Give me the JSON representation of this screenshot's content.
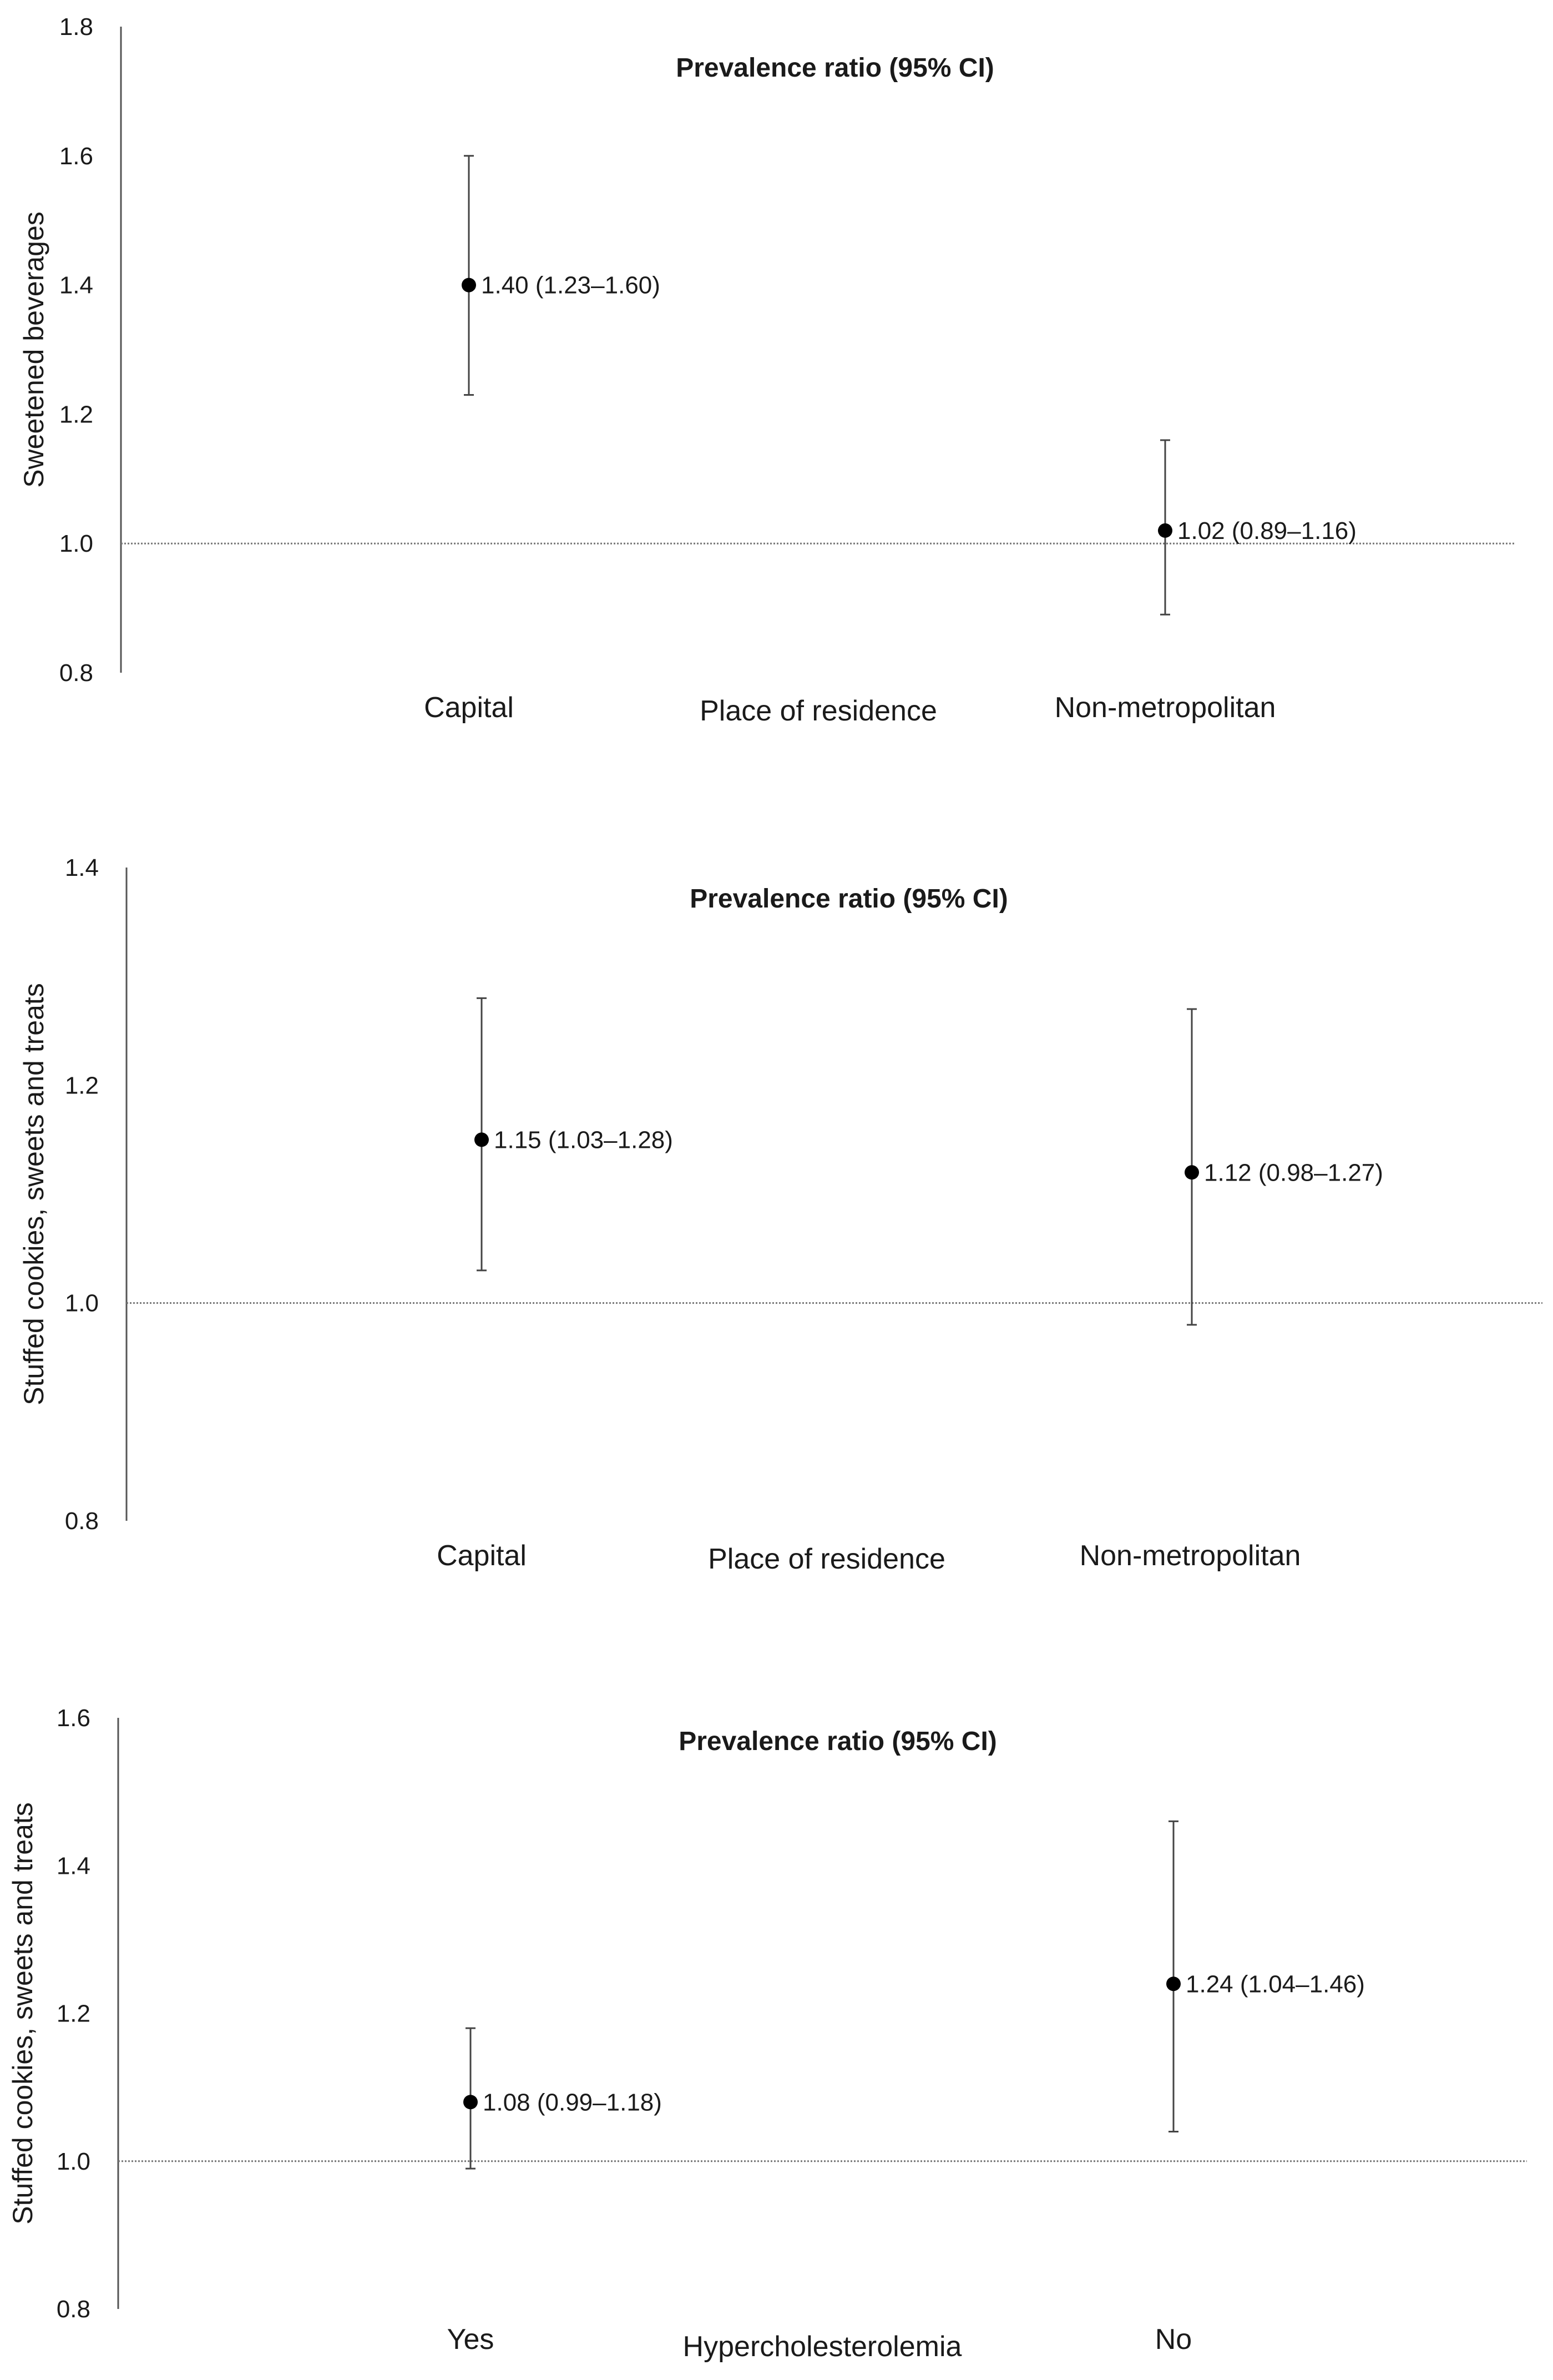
{
  "chart_data": [
    {
      "type": "scatter",
      "subtype": "point-estimate-with-95%-CI",
      "title": "Prevalence ratio (95% CI)",
      "ylabel": "Sweetened beverages",
      "xlabel": "Place of residence",
      "ylim": [
        0.8,
        1.8
      ],
      "yticks": [
        "0.8",
        "1.0",
        "1.2",
        "1.4",
        "1.6",
        "1.8"
      ],
      "reference_line": 1.0,
      "grid": false,
      "categories": [
        "Capital",
        "Non-metropolitan"
      ],
      "points": [
        {
          "category": "Capital",
          "value": 1.4,
          "lower": 1.23,
          "upper": 1.6,
          "label": "1.40 (1.23–1.60)"
        },
        {
          "category": "Non-metropolitan",
          "value": 1.02,
          "lower": 0.89,
          "upper": 1.16,
          "label": "1.02 (0.89–1.16)"
        }
      ]
    },
    {
      "type": "scatter",
      "subtype": "point-estimate-with-95%-CI",
      "title": "Prevalence ratio (95% CI)",
      "ylabel": "Stuffed cookies, sweets and treats",
      "xlabel": "Place of residence",
      "ylim": [
        0.8,
        1.4
      ],
      "yticks": [
        "0.8",
        "1.0",
        "1.2",
        "1.4"
      ],
      "reference_line": 1.0,
      "grid": false,
      "categories": [
        "Capital",
        "Non-metropolitan"
      ],
      "points": [
        {
          "category": "Capital",
          "value": 1.15,
          "lower": 1.03,
          "upper": 1.28,
          "label": "1.15 (1.03–1.28)"
        },
        {
          "category": "Non-metropolitan",
          "value": 1.12,
          "lower": 0.98,
          "upper": 1.27,
          "label": "1.12 (0.98–1.27)"
        }
      ]
    },
    {
      "type": "scatter",
      "subtype": "point-estimate-with-95%-CI",
      "title": "Prevalence ratio (95% CI)",
      "ylabel": "Stuffed cookies, sweets and treats",
      "xlabel": "Hypercholesterolemia",
      "ylim": [
        0.8,
        1.6
      ],
      "yticks": [
        "0.8",
        "1.0",
        "1.2",
        "1.4",
        "1.6"
      ],
      "reference_line": 1.0,
      "grid": false,
      "categories": [
        "Yes",
        "No"
      ],
      "points": [
        {
          "category": "Yes",
          "value": 1.08,
          "lower": 0.99,
          "upper": 1.18,
          "label": "1.08 (0.99–1.18)"
        },
        {
          "category": "No",
          "value": 1.24,
          "lower": 1.04,
          "upper": 1.46,
          "label": "1.24 (1.04–1.46)"
        }
      ]
    }
  ]
}
